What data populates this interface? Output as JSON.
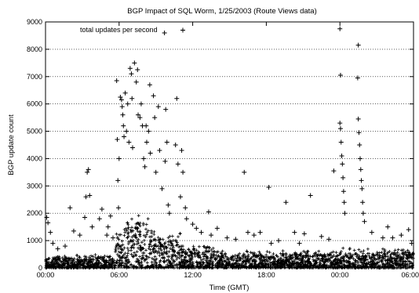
{
  "chart_data": {
    "type": "scatter",
    "title": "BGP Impact of SQL Worm, 1/25/2003 (Route Views data)",
    "xlabel": "Time (GMT)",
    "ylabel": "BGP update count",
    "xlim": [
      0,
      30
    ],
    "ylim": [
      0,
      9000
    ],
    "x_unit": "hours since 00:00 GMT, 1/25/2003",
    "x_ticks": [
      {
        "value": 0,
        "label": "00:00"
      },
      {
        "value": 6,
        "label": "06:00"
      },
      {
        "value": 12,
        "label": "12:00"
      },
      {
        "value": 18,
        "label": "18:00"
      },
      {
        "value": 24,
        "label": "00:00"
      },
      {
        "value": 30,
        "label": "06:00"
      }
    ],
    "y_ticks": [
      {
        "value": 0,
        "label": "0"
      },
      {
        "value": 1000,
        "label": "1000"
      },
      {
        "value": 2000,
        "label": "2000"
      },
      {
        "value": 3000,
        "label": "3000"
      },
      {
        "value": 4000,
        "label": "4000"
      },
      {
        "value": 5000,
        "label": "5000"
      },
      {
        "value": 6000,
        "label": "6000"
      },
      {
        "value": 7000,
        "label": "7000"
      },
      {
        "value": 8000,
        "label": "8000"
      },
      {
        "value": 9000,
        "label": "9000"
      }
    ],
    "grid": "horizontal dotted",
    "legend_position": "top-left",
    "series": [
      {
        "name": "total updates per second",
        "marker": "+",
        "color": "#000000",
        "points": [
          [
            0.1,
            1850
          ],
          [
            0.2,
            1650
          ],
          [
            0.4,
            1300
          ],
          [
            0.6,
            900
          ],
          [
            1.0,
            700
          ],
          [
            1.6,
            800
          ],
          [
            2.0,
            2200
          ],
          [
            2.3,
            1350
          ],
          [
            2.8,
            1200
          ],
          [
            3.4,
            3500
          ],
          [
            3.5,
            3600
          ],
          [
            3.6,
            2650
          ],
          [
            3.3,
            2600
          ],
          [
            3.2,
            1850
          ],
          [
            3.8,
            1500
          ],
          [
            4.4,
            1800
          ],
          [
            4.6,
            2150
          ],
          [
            5.0,
            1200
          ],
          [
            5.1,
            1500
          ],
          [
            5.3,
            1900
          ],
          [
            5.5,
            1100
          ],
          [
            5.8,
            6850
          ],
          [
            5.85,
            4700
          ],
          [
            5.9,
            3200
          ],
          [
            5.95,
            2200
          ],
          [
            6.0,
            4000
          ],
          [
            6.1,
            6250
          ],
          [
            6.2,
            6150
          ],
          [
            6.25,
            5900
          ],
          [
            6.3,
            5600
          ],
          [
            6.35,
            5200
          ],
          [
            6.4,
            4800
          ],
          [
            6.5,
            6400
          ],
          [
            6.6,
            5000
          ],
          [
            6.7,
            6000
          ],
          [
            6.8,
            4600
          ],
          [
            6.9,
            7300
          ],
          [
            7.0,
            7100
          ],
          [
            7.05,
            6200
          ],
          [
            7.1,
            4400
          ],
          [
            7.25,
            7500
          ],
          [
            7.4,
            6800
          ],
          [
            7.5,
            7250
          ],
          [
            7.55,
            5600
          ],
          [
            7.7,
            5500
          ],
          [
            7.8,
            6000
          ],
          [
            7.9,
            5200
          ],
          [
            8.0,
            4000
          ],
          [
            8.1,
            3700
          ],
          [
            8.2,
            5200
          ],
          [
            8.25,
            4600
          ],
          [
            8.4,
            5000
          ],
          [
            8.5,
            6700
          ],
          [
            8.55,
            4200
          ],
          [
            8.8,
            6300
          ],
          [
            8.9,
            5500
          ],
          [
            9.0,
            3500
          ],
          [
            9.2,
            5900
          ],
          [
            9.3,
            4300
          ],
          [
            9.5,
            2900
          ],
          [
            9.7,
            8600
          ],
          [
            9.75,
            3900
          ],
          [
            9.8,
            5800
          ],
          [
            9.9,
            4600
          ],
          [
            10.0,
            2300
          ],
          [
            10.1,
            2000
          ],
          [
            10.6,
            4500
          ],
          [
            10.7,
            6200
          ],
          [
            10.8,
            3800
          ],
          [
            11.0,
            2600
          ],
          [
            11.1,
            4300
          ],
          [
            11.2,
            3500
          ],
          [
            11.4,
            2200
          ],
          [
            11.5,
            1800
          ],
          [
            12.0,
            1600
          ],
          [
            12.3,
            1450
          ],
          [
            12.7,
            1300
          ],
          [
            13.3,
            2050
          ],
          [
            13.5,
            1200
          ],
          [
            14.0,
            1450
          ],
          [
            14.8,
            1100
          ],
          [
            15.5,
            1050
          ],
          [
            16.2,
            3500
          ],
          [
            16.5,
            1300
          ],
          [
            17.0,
            1200
          ],
          [
            17.5,
            1300
          ],
          [
            18.2,
            2950
          ],
          [
            18.4,
            900
          ],
          [
            19.0,
            1000
          ],
          [
            19.6,
            2400
          ],
          [
            20.3,
            1300
          ],
          [
            20.7,
            900
          ],
          [
            21.1,
            1250
          ],
          [
            21.6,
            2650
          ],
          [
            22.5,
            1150
          ],
          [
            23.1,
            1050
          ],
          [
            23.5,
            3550
          ],
          [
            24.0,
            5300
          ],
          [
            24.05,
            5100
          ],
          [
            24.1,
            4600
          ],
          [
            24.15,
            4100
          ],
          [
            24.2,
            3800
          ],
          [
            24.25,
            3300
          ],
          [
            24.3,
            2800
          ],
          [
            24.35,
            2400
          ],
          [
            24.0,
            8750
          ],
          [
            24.05,
            7050
          ],
          [
            24.4,
            2000
          ],
          [
            25.5,
            8150
          ],
          [
            25.45,
            6950
          ],
          [
            25.5,
            5450
          ],
          [
            25.55,
            4950
          ],
          [
            25.6,
            4500
          ],
          [
            25.65,
            4000
          ],
          [
            25.7,
            3600
          ],
          [
            25.75,
            3200
          ],
          [
            25.8,
            2900
          ],
          [
            25.85,
            2400
          ],
          [
            25.9,
            2000
          ],
          [
            26.0,
            1700
          ],
          [
            26.6,
            1300
          ],
          [
            27.5,
            1100
          ],
          [
            27.9,
            1500
          ],
          [
            28.3,
            1100
          ],
          [
            29.0,
            1200
          ],
          [
            29.6,
            1400
          ],
          [
            29.85,
            900
          ]
        ]
      }
    ]
  }
}
